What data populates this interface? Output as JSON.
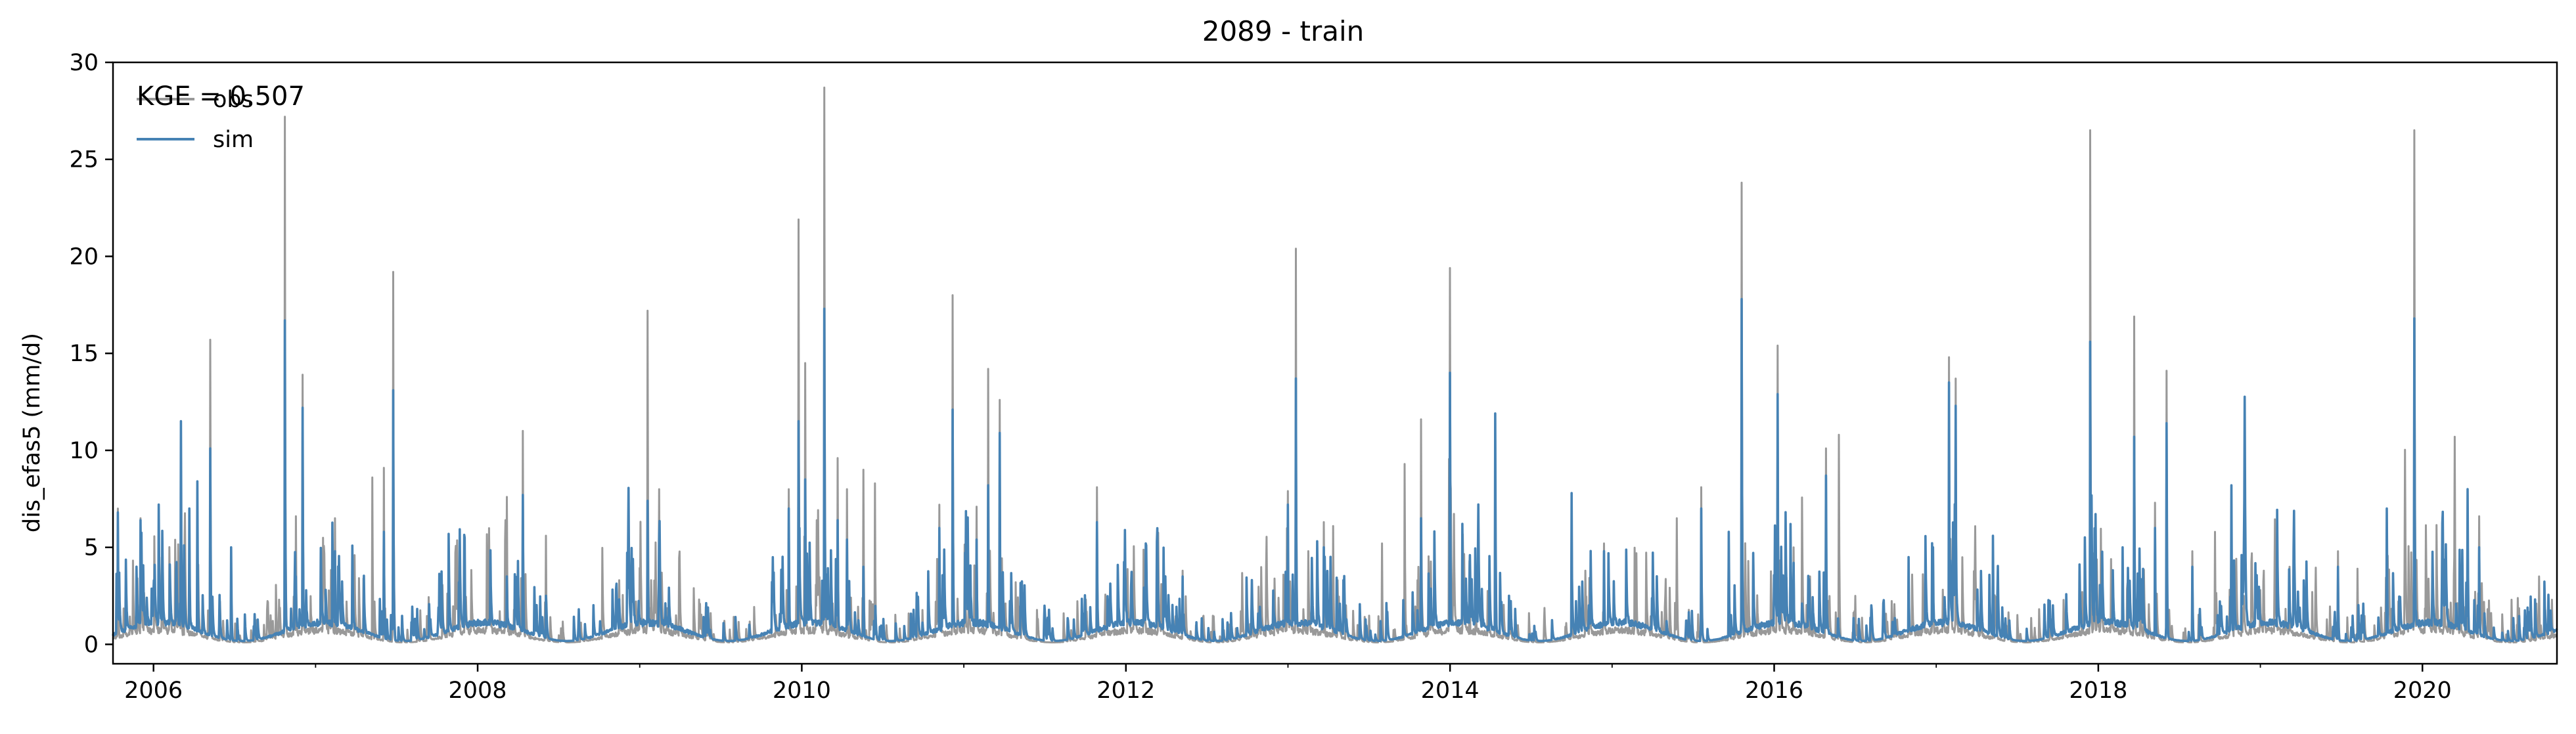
{
  "chart_data": {
    "type": "line",
    "title": "2089 - train",
    "xlabel": "",
    "ylabel": "dis_efas5 (mm/d)",
    "xlim": [
      2005.75,
      2020.83
    ],
    "ylim": [
      -1,
      30
    ],
    "x_ticks": [
      2006,
      2008,
      2010,
      2012,
      2014,
      2016,
      2018,
      2020
    ],
    "x_tick_labels": [
      "2006",
      "2008",
      "2010",
      "2012",
      "2014",
      "2016",
      "2018",
      "2020"
    ],
    "y_ticks": [
      0,
      5,
      10,
      15,
      20,
      25,
      30
    ],
    "y_tick_labels": [
      "0",
      "5",
      "10",
      "15",
      "20",
      "25",
      "30"
    ],
    "grid": false,
    "legend_position": "top-left",
    "annotation": "KGE = 0.507",
    "series": [
      {
        "name": "obs",
        "color": "#999999",
        "baseline": 0.4,
        "peaks": [
          [
            2005.78,
            7.0
          ],
          [
            2005.92,
            6.5
          ],
          [
            2006.17,
            9.5
          ],
          [
            2006.27,
            4.8
          ],
          [
            2006.35,
            15.7
          ],
          [
            2006.48,
            4.8
          ],
          [
            2006.81,
            27.2
          ],
          [
            2006.88,
            6.6
          ],
          [
            2006.92,
            13.9
          ],
          [
            2007.12,
            6.5
          ],
          [
            2007.35,
            8.6
          ],
          [
            2007.42,
            9.1
          ],
          [
            2007.48,
            19.2
          ],
          [
            2007.92,
            5.5
          ],
          [
            2008.18,
            7.6
          ],
          [
            2008.28,
            11.0
          ],
          [
            2008.42,
            5.6
          ],
          [
            2009.05,
            17.2
          ],
          [
            2009.12,
            8.0
          ],
          [
            2009.92,
            8.0
          ],
          [
            2009.98,
            21.9
          ],
          [
            2010.02,
            14.5
          ],
          [
            2010.14,
            28.7
          ],
          [
            2010.22,
            9.6
          ],
          [
            2010.28,
            8.0
          ],
          [
            2010.38,
            9.0
          ],
          [
            2010.45,
            8.3
          ],
          [
            2010.85,
            7.2
          ],
          [
            2010.93,
            18.0
          ],
          [
            2011.08,
            7.1
          ],
          [
            2011.15,
            14.2
          ],
          [
            2011.22,
            12.6
          ],
          [
            2011.32,
            3.2
          ],
          [
            2011.82,
            8.1
          ],
          [
            2012.35,
            3.8
          ],
          [
            2013.0,
            7.9
          ],
          [
            2013.05,
            20.4
          ],
          [
            2013.22,
            6.3
          ],
          [
            2013.28,
            6.1
          ],
          [
            2013.58,
            5.2
          ],
          [
            2013.72,
            9.3
          ],
          [
            2013.82,
            11.6
          ],
          [
            2014.0,
            19.4
          ],
          [
            2014.12,
            4.3
          ],
          [
            2014.28,
            11.9
          ],
          [
            2014.75,
            7.8
          ],
          [
            2014.95,
            5.2
          ],
          [
            2015.15,
            4.7
          ],
          [
            2015.4,
            6.5
          ],
          [
            2015.55,
            8.1
          ],
          [
            2015.72,
            5.8
          ],
          [
            2015.8,
            23.8
          ],
          [
            2016.02,
            15.4
          ],
          [
            2016.12,
            5.0
          ],
          [
            2016.22,
            3.5
          ],
          [
            2016.32,
            10.1
          ],
          [
            2016.4,
            10.8
          ],
          [
            2016.5,
            2.5
          ],
          [
            2016.83,
            4.5
          ],
          [
            2016.98,
            5.0
          ],
          [
            2017.08,
            14.8
          ],
          [
            2017.12,
            13.7
          ],
          [
            2017.35,
            4.2
          ],
          [
            2017.9,
            2.7
          ],
          [
            2017.95,
            26.5
          ],
          [
            2018.15,
            5.0
          ],
          [
            2018.22,
            16.9
          ],
          [
            2018.35,
            7.3
          ],
          [
            2018.42,
            14.1
          ],
          [
            2018.58,
            4.8
          ],
          [
            2018.72,
            5.8
          ],
          [
            2018.82,
            8.1
          ],
          [
            2019.02,
            3.8
          ],
          [
            2019.18,
            4.0
          ],
          [
            2019.32,
            2.7
          ],
          [
            2019.48,
            4.8
          ],
          [
            2019.6,
            3.9
          ],
          [
            2019.78,
            7.0
          ],
          [
            2019.95,
            26.5
          ],
          [
            2020.2,
            10.7
          ],
          [
            2020.28,
            8.0
          ],
          [
            2020.35,
            6.6
          ],
          [
            2020.55,
            2.3
          ],
          [
            2020.72,
            3.5
          ],
          [
            2020.8,
            2.3
          ]
        ]
      },
      {
        "name": "sim",
        "color": "#4682b4",
        "baseline": 0.7,
        "peaks": [
          [
            2005.78,
            6.8
          ],
          [
            2005.92,
            6.4
          ],
          [
            2006.17,
            11.5
          ],
          [
            2006.22,
            7.0
          ],
          [
            2006.27,
            8.4
          ],
          [
            2006.35,
            10.1
          ],
          [
            2006.48,
            5.0
          ],
          [
            2006.81,
            16.7
          ],
          [
            2006.88,
            3.5
          ],
          [
            2006.92,
            12.2
          ],
          [
            2007.12,
            4.8
          ],
          [
            2007.42,
            5.8
          ],
          [
            2007.48,
            13.1
          ],
          [
            2007.92,
            5.5
          ],
          [
            2008.18,
            3.5
          ],
          [
            2008.28,
            7.7
          ],
          [
            2008.42,
            2.5
          ],
          [
            2009.05,
            7.4
          ],
          [
            2009.12,
            5.6
          ],
          [
            2009.92,
            7.0
          ],
          [
            2009.98,
            11.5
          ],
          [
            2010.02,
            8.5
          ],
          [
            2010.14,
            17.3
          ],
          [
            2010.22,
            6.4
          ],
          [
            2010.28,
            5.4
          ],
          [
            2010.38,
            4.0
          ],
          [
            2010.85,
            6.0
          ],
          [
            2010.93,
            12.1
          ],
          [
            2011.08,
            5.4
          ],
          [
            2011.15,
            8.2
          ],
          [
            2011.22,
            10.9
          ],
          [
            2011.82,
            6.3
          ],
          [
            2012.35,
            3.5
          ],
          [
            2013.0,
            7.2
          ],
          [
            2013.05,
            13.7
          ],
          [
            2013.22,
            5.0
          ],
          [
            2013.82,
            6.5
          ],
          [
            2014.0,
            14.0
          ],
          [
            2014.12,
            3.5
          ],
          [
            2014.28,
            11.9
          ],
          [
            2014.75,
            7.8
          ],
          [
            2014.95,
            4.8
          ],
          [
            2015.55,
            7.0
          ],
          [
            2015.72,
            5.8
          ],
          [
            2015.8,
            17.8
          ],
          [
            2016.02,
            12.9
          ],
          [
            2016.12,
            4.2
          ],
          [
            2016.32,
            8.7
          ],
          [
            2016.83,
            4.5
          ],
          [
            2016.98,
            5.0
          ],
          [
            2017.08,
            13.5
          ],
          [
            2017.12,
            12.3
          ],
          [
            2017.35,
            5.6
          ],
          [
            2017.95,
            15.6
          ],
          [
            2018.15,
            5.0
          ],
          [
            2018.22,
            10.7
          ],
          [
            2018.35,
            6.0
          ],
          [
            2018.42,
            11.4
          ],
          [
            2018.58,
            4.0
          ],
          [
            2018.82,
            8.2
          ],
          [
            2019.48,
            4.0
          ],
          [
            2019.78,
            7.0
          ],
          [
            2019.95,
            16.8
          ],
          [
            2020.28,
            8.0
          ],
          [
            2020.35,
            5.0
          ]
        ]
      }
    ]
  }
}
